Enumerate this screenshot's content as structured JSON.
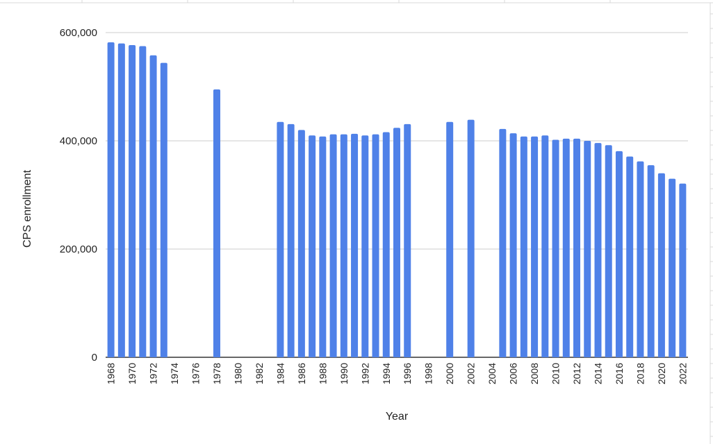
{
  "chart_data": {
    "type": "bar",
    "title": "",
    "xlabel": "Year",
    "ylabel": "CPS enrollment",
    "ylim": [
      0,
      600000
    ],
    "y_ticks": [
      "0",
      "200,000",
      "400,000",
      "600,000"
    ],
    "y_tick_values": [
      0,
      200000,
      400000,
      600000
    ],
    "x_tick_labels": [
      "1968",
      "1970",
      "1972",
      "1974",
      "1976",
      "1978",
      "1980",
      "1982",
      "1984",
      "1986",
      "1988",
      "1990",
      "1992",
      "1994",
      "1996",
      "1998",
      "2000",
      "2002",
      "2004",
      "2006",
      "2008",
      "2010",
      "2012",
      "2014",
      "2016",
      "2018",
      "2020",
      "2022"
    ],
    "grid": true,
    "bar_color": "#4f81e8",
    "categories": [
      "1968",
      "1969",
      "1970",
      "1971",
      "1972",
      "1973",
      "1974",
      "1975",
      "1976",
      "1977",
      "1978",
      "1979",
      "1980",
      "1981",
      "1982",
      "1983",
      "1984",
      "1985",
      "1986",
      "1987",
      "1988",
      "1989",
      "1990",
      "1991",
      "1992",
      "1993",
      "1994",
      "1995",
      "1996",
      "1997",
      "1998",
      "1999",
      "2000",
      "2001",
      "2002",
      "2003",
      "2004",
      "2005",
      "2006",
      "2007",
      "2008",
      "2009",
      "2010",
      "2011",
      "2012",
      "2013",
      "2014",
      "2015",
      "2016",
      "2017",
      "2018",
      "2019",
      "2020",
      "2021",
      "2022"
    ],
    "values": [
      582000,
      580000,
      577000,
      575000,
      558000,
      544000,
      null,
      null,
      null,
      null,
      495000,
      null,
      null,
      null,
      null,
      null,
      435000,
      431000,
      420000,
      410000,
      408000,
      412000,
      412000,
      413000,
      410000,
      412000,
      416000,
      424000,
      431000,
      null,
      null,
      null,
      435000,
      null,
      439000,
      null,
      null,
      422000,
      414000,
      408000,
      408000,
      410000,
      402000,
      404000,
      404000,
      400000,
      396000,
      392000,
      381000,
      371000,
      362000,
      355000,
      340000,
      330000,
      321000
    ]
  }
}
